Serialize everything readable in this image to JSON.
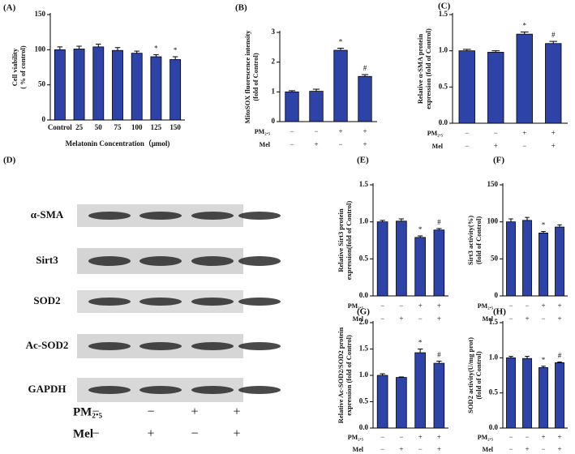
{
  "chart_data": [
    {
      "type": "bar",
      "title": "(A)",
      "ylabel": [
        "Cell viability",
        "( % of control)"
      ],
      "xlabel": "Melatonin Concentration（μmol)",
      "categories": [
        "Control",
        "25",
        "50",
        "75",
        "100",
        "125",
        "150"
      ],
      "values": [
        100,
        101,
        104,
        99,
        95,
        90,
        86
      ],
      "errors": [
        4,
        4,
        4,
        4,
        3,
        3,
        4
      ],
      "markers": [
        null,
        null,
        null,
        null,
        null,
        "*",
        "*"
      ],
      "ylim": [
        0,
        150
      ],
      "yticks": [
        0,
        50,
        100,
        150
      ],
      "color": "#2d43a8"
    },
    {
      "type": "bar",
      "title": "(B)",
      "ylabel": [
        "MitoSOX fluorescence intensity",
        "(fold of Control)"
      ],
      "values": [
        1.0,
        1.02,
        2.4,
        1.52
      ],
      "errors": [
        0.04,
        0.07,
        0.07,
        0.06
      ],
      "markers": [
        null,
        null,
        "*",
        "#"
      ],
      "treatments": [
        {
          "name": "PM₂.₅",
          "signs": [
            "−",
            "−",
            "+",
            "+"
          ]
        },
        {
          "name": "Mel",
          "signs": [
            "−",
            "+",
            "−",
            "+"
          ]
        }
      ],
      "ylim": [
        0,
        3
      ],
      "yticks": [
        0,
        1,
        2,
        3
      ],
      "color": "#2d43a8"
    },
    {
      "type": "bar",
      "title": "(C)",
      "ylabel": [
        "Relative α-SMA protein",
        "expression (fold of Control)"
      ],
      "values": [
        1.0,
        0.98,
        1.23,
        1.1
      ],
      "errors": [
        0.02,
        0.02,
        0.03,
        0.03
      ],
      "markers": [
        null,
        null,
        "*",
        "#"
      ],
      "treatments": [
        {
          "name": "PM₂.₅",
          "signs": [
            "−",
            "−",
            "+",
            "+"
          ]
        },
        {
          "name": "Mel",
          "signs": [
            "−",
            "+",
            "−",
            "+"
          ]
        }
      ],
      "ylim": [
        0,
        1.5
      ],
      "yticks": [
        {
          "value": 0,
          "label": "0.0"
        },
        {
          "value": 0.5,
          "label": "0.5"
        },
        {
          "value": 1,
          "label": "1.0"
        },
        {
          "value": 1.5,
          "label": "1.5"
        }
      ],
      "color": "#2d43a8"
    },
    {
      "type": "bar",
      "title": "(E)",
      "ylabel": [
        "Relative Sirt3 protein",
        "expression(fold of Control)"
      ],
      "values": [
        1.0,
        1.01,
        0.79,
        0.89
      ],
      "errors": [
        0.02,
        0.03,
        0.02,
        0.02
      ],
      "markers": [
        null,
        null,
        "*",
        "#"
      ],
      "treatments": [
        {
          "name": "PM₂.₅",
          "signs": [
            "−",
            "−",
            "+",
            "+"
          ]
        },
        {
          "name": "Mel",
          "signs": [
            "−",
            "+",
            "−",
            "+"
          ]
        }
      ],
      "ylim": [
        0,
        1.5
      ],
      "yticks": [
        {
          "value": 0,
          "label": "0.0"
        },
        {
          "value": 0.5,
          "label": "0.5"
        },
        {
          "value": 1,
          "label": "1.0"
        },
        {
          "value": 1.5,
          "label": "1.5"
        }
      ],
      "color": "#2d43a8"
    },
    {
      "type": "bar",
      "title": "(F)",
      "ylabel": [
        "Sirt3 activity(%)",
        "(fold of Control)"
      ],
      "values": [
        100,
        102,
        85,
        93
      ],
      "errors": [
        4,
        4,
        2,
        3
      ],
      "markers": [
        null,
        null,
        "*",
        null
      ],
      "treatments": [
        {
          "name": "PM₂.₅",
          "signs": [
            "−",
            "−",
            "+",
            "+"
          ]
        },
        {
          "name": "Mel",
          "signs": [
            "−",
            "+",
            "−",
            "+"
          ]
        }
      ],
      "ylim": [
        0,
        150
      ],
      "yticks": [
        0,
        50,
        100,
        150
      ],
      "color": "#2d43a8"
    },
    {
      "type": "bar",
      "title": "(G)",
      "ylabel": [
        "Relative Ac-SOD2/SOD2 protein",
        "expression (fold of Control)"
      ],
      "values": [
        1.0,
        0.96,
        1.43,
        1.23
      ],
      "errors": [
        0.03,
        0.01,
        0.07,
        0.04
      ],
      "markers": [
        null,
        null,
        "*",
        "#"
      ],
      "treatments": [
        {
          "name": "PM₂.₅",
          "signs": [
            "−",
            "−",
            "+",
            "+"
          ]
        },
        {
          "name": "Mel",
          "signs": [
            "−",
            "+",
            "−",
            "+"
          ]
        }
      ],
      "ylim": [
        0,
        2
      ],
      "yticks": [
        {
          "value": 0,
          "label": "0.0"
        },
        {
          "value": 0.5,
          "label": "0.5"
        },
        {
          "value": 1,
          "label": "1.0"
        },
        {
          "value": 1.5,
          "label": "1.5"
        },
        {
          "value": 2,
          "label": "2.0"
        }
      ],
      "color": "#2d43a8"
    },
    {
      "type": "bar",
      "title": "(H)",
      "ylabel": [
        "SOD2 activity(U/mg prot)",
        "(fold of Control)"
      ],
      "values": [
        1.0,
        0.99,
        0.86,
        0.93
      ],
      "errors": [
        0.02,
        0.03,
        0.02,
        0.01
      ],
      "markers": [
        null,
        null,
        "*",
        "#"
      ],
      "treatments": [
        {
          "name": "PM₂.₅",
          "signs": [
            "−",
            "−",
            "+",
            "+"
          ]
        },
        {
          "name": "Mel",
          "signs": [
            "−",
            "+",
            "−",
            "+"
          ]
        }
      ],
      "ylim": [
        0,
        1.5
      ],
      "yticks": [
        {
          "value": 0,
          "label": "0.0"
        },
        {
          "value": 0.5,
          "label": "0.5"
        },
        {
          "value": 1,
          "label": "1.0"
        },
        {
          "value": 1.5,
          "label": "1.5"
        }
      ],
      "color": "#2d43a8"
    }
  ],
  "blot": {
    "title": "(D)",
    "proteins": [
      "α-SMA",
      "Sirt3",
      "SOD2",
      "Ac-SOD2",
      "GAPDH"
    ],
    "treatments": [
      {
        "name": "PM₂.₅",
        "signs": [
          "−",
          "−",
          "+",
          "+"
        ]
      },
      {
        "name": "Mel",
        "signs": [
          "−",
          "+",
          "−",
          "+"
        ]
      }
    ]
  }
}
